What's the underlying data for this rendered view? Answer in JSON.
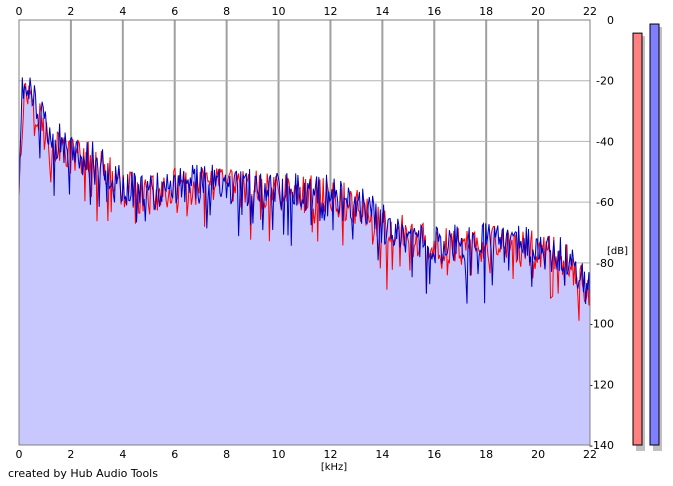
{
  "chart_data": {
    "type": "area",
    "title": "",
    "xlabel": "[kHz]",
    "ylabel": "[dB]",
    "xlim": [
      0,
      22
    ],
    "ylim": [
      -140,
      0
    ],
    "xticks": [
      0,
      2,
      4,
      6,
      8,
      10,
      12,
      14,
      16,
      18,
      20,
      22
    ],
    "yticks": [
      0,
      -20,
      -40,
      -60,
      -80,
      -100,
      -120,
      -140
    ],
    "grid": true,
    "series": [
      {
        "color": "#ff0000",
        "envelope": [
          [
            0,
            -58
          ],
          [
            0.1,
            -28
          ],
          [
            0.4,
            -22
          ],
          [
            1,
            -38
          ],
          [
            2,
            -45
          ],
          [
            3,
            -47
          ],
          [
            4,
            -56
          ],
          [
            5,
            -58
          ],
          [
            6,
            -55
          ],
          [
            8,
            -55
          ],
          [
            10,
            -57
          ],
          [
            12,
            -58
          ],
          [
            13,
            -61
          ],
          [
            14,
            -68
          ],
          [
            16,
            -75
          ],
          [
            18,
            -74
          ],
          [
            20,
            -76
          ],
          [
            21,
            -79
          ],
          [
            22,
            -91
          ]
        ]
      },
      {
        "color": "#0000c0",
        "envelope": [
          [
            0,
            -58
          ],
          [
            0.1,
            -25
          ],
          [
            0.4,
            -20
          ],
          [
            1,
            -36
          ],
          [
            2,
            -44
          ],
          [
            3,
            -46
          ],
          [
            4,
            -55
          ],
          [
            5,
            -57
          ],
          [
            6,
            -54
          ],
          [
            8,
            -54
          ],
          [
            10,
            -56
          ],
          [
            12,
            -57
          ],
          [
            13,
            -60
          ],
          [
            14,
            -67
          ],
          [
            16,
            -74
          ],
          [
            18,
            -73
          ],
          [
            20,
            -75
          ],
          [
            21,
            -78
          ],
          [
            22,
            -90
          ]
        ]
      }
    ],
    "fill_color": "#c8c8ff",
    "level_meters": [
      {
        "color": "#ff8080",
        "level_db": -4
      },
      {
        "color": "#8080ff",
        "level_db": -1
      }
    ]
  },
  "credit": "created by Hub Audio Tools"
}
